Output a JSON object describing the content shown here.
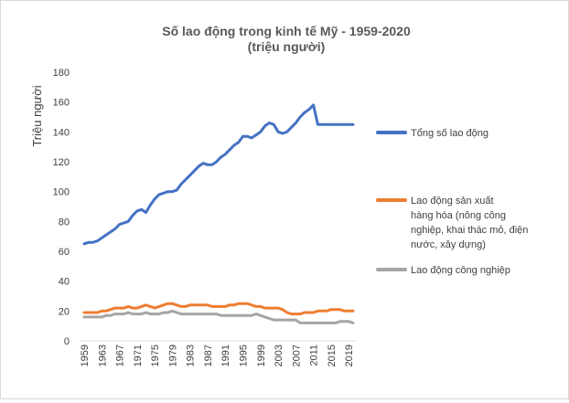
{
  "chart_data": {
    "type": "line",
    "title": "Số lao động trong kinh tế Mỹ - 1959-2020",
    "subtitle": "(triệu người)",
    "xlabel": "",
    "ylabel": "Triệu người",
    "ylim": [
      0,
      180
    ],
    "yticks": [
      0,
      20,
      40,
      60,
      80,
      100,
      120,
      140,
      160,
      180
    ],
    "grid": false,
    "legend_position": "right",
    "x": [
      1959,
      1960,
      1961,
      1962,
      1963,
      1964,
      1965,
      1966,
      1967,
      1968,
      1969,
      1970,
      1971,
      1972,
      1973,
      1974,
      1975,
      1976,
      1977,
      1978,
      1979,
      1980,
      1981,
      1982,
      1983,
      1984,
      1985,
      1986,
      1987,
      1988,
      1989,
      1990,
      1991,
      1992,
      1993,
      1994,
      1995,
      1996,
      1997,
      1998,
      1999,
      2000,
      2001,
      2002,
      2003,
      2004,
      2005,
      2006,
      2007,
      2008,
      2009,
      2010,
      2011,
      2012,
      2013,
      2014,
      2015,
      2016,
      2017,
      2018,
      2019,
      2020
    ],
    "xtick_labels": [
      "1959",
      "1963",
      "1967",
      "1971",
      "1975",
      "1979",
      "1983",
      "1987",
      "1991",
      "1995",
      "1999",
      "2003",
      "2007",
      "2011",
      "2015",
      "2019"
    ],
    "series": [
      {
        "name": "Tổng số lao động",
        "color": "#4472c4",
        "values": [
          65,
          66,
          66,
          67,
          69,
          71,
          73,
          75,
          78,
          79,
          80,
          84,
          87,
          88,
          86,
          91,
          95,
          98,
          99,
          100,
          100,
          101,
          105,
          108,
          111,
          114,
          117,
          119,
          118,
          118,
          120,
          123,
          125,
          128,
          131,
          133,
          137,
          137,
          136,
          138,
          140,
          144,
          146,
          145,
          140,
          139,
          140,
          143,
          146,
          150,
          153,
          155,
          158,
          145,
          145,
          145,
          145,
          145,
          145,
          145,
          145,
          145
        ]
      },
      {
        "name": "Lao động sản xuất hàng hóa (nông công nghiệp, khai thác mỏ, điện nước, xây dựng)",
        "color": "#ed7d31",
        "values": [
          19,
          19,
          19,
          19,
          20,
          20,
          21,
          22,
          22,
          22,
          23,
          22,
          22,
          23,
          24,
          23,
          22,
          23,
          24,
          25,
          25,
          24,
          23,
          23,
          24,
          24,
          24,
          24,
          24,
          23,
          23,
          23,
          23,
          24,
          24,
          25,
          25,
          25,
          24,
          23,
          23,
          22,
          22,
          22,
          22,
          21,
          19,
          18,
          18,
          18,
          19,
          19,
          19,
          20,
          20,
          20,
          21,
          21,
          21,
          20,
          20,
          20
        ]
      },
      {
        "name": "Lao động công nghiệp",
        "color": "#a5a5a5",
        "values": [
          16,
          16,
          16,
          16,
          16,
          17,
          17,
          18,
          18,
          18,
          19,
          18,
          18,
          18,
          19,
          18,
          18,
          18,
          19,
          19,
          20,
          19,
          18,
          18,
          18,
          18,
          18,
          18,
          18,
          18,
          18,
          17,
          17,
          17,
          17,
          17,
          17,
          17,
          17,
          18,
          17,
          16,
          15,
          14,
          14,
          14,
          14,
          14,
          14,
          12,
          12,
          12,
          12,
          12,
          12,
          12,
          12,
          12,
          13,
          13,
          13,
          12
        ]
      }
    ]
  }
}
